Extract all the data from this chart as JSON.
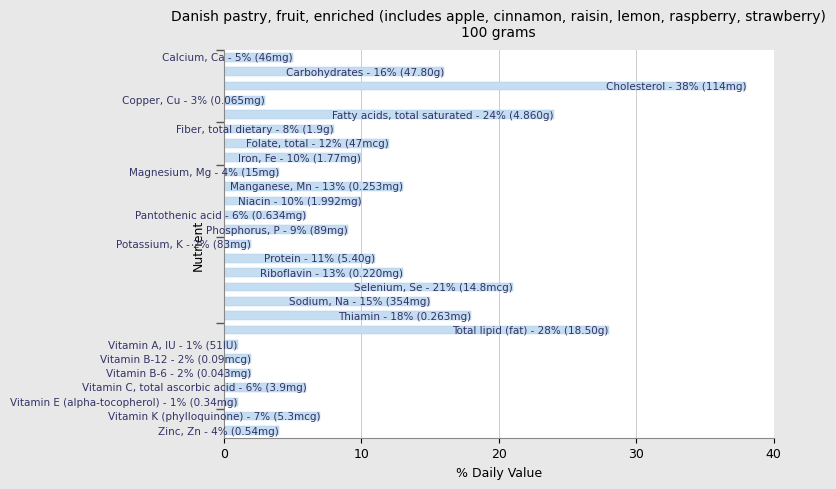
{
  "title": "Danish pastry, fruit, enriched (includes apple, cinnamon, raisin, lemon, raspberry, strawberry)\n100 grams",
  "xlabel": "% Daily Value",
  "ylabel": "Nutrient",
  "xlim": [
    0,
    40
  ],
  "bar_color": "#c5ddf0",
  "bar_edge_color": "#a8c8e8",
  "background_color": "#e8e8e8",
  "plot_background": "#ffffff",
  "text_color": "#333366",
  "nutrients": [
    {
      "label": "Calcium, Ca - 5% (46mg)",
      "value": 5
    },
    {
      "label": "Carbohydrates - 16% (47.80g)",
      "value": 16
    },
    {
      "label": "Cholesterol - 38% (114mg)",
      "value": 38
    },
    {
      "label": "Copper, Cu - 3% (0.065mg)",
      "value": 3
    },
    {
      "label": "Fatty acids, total saturated - 24% (4.860g)",
      "value": 24
    },
    {
      "label": "Fiber, total dietary - 8% (1.9g)",
      "value": 8
    },
    {
      "label": "Folate, total - 12% (47mcg)",
      "value": 12
    },
    {
      "label": "Iron, Fe - 10% (1.77mg)",
      "value": 10
    },
    {
      "label": "Magnesium, Mg - 4% (15mg)",
      "value": 4
    },
    {
      "label": "Manganese, Mn - 13% (0.253mg)",
      "value": 13
    },
    {
      "label": "Niacin - 10% (1.992mg)",
      "value": 10
    },
    {
      "label": "Pantothenic acid - 6% (0.634mg)",
      "value": 6
    },
    {
      "label": "Phosphorus, P - 9% (89mg)",
      "value": 9
    },
    {
      "label": "Potassium, K - 2% (83mg)",
      "value": 2
    },
    {
      "label": "Protein - 11% (5.40g)",
      "value": 11
    },
    {
      "label": "Riboflavin - 13% (0.220mg)",
      "value": 13
    },
    {
      "label": "Selenium, Se - 21% (14.8mcg)",
      "value": 21
    },
    {
      "label": "Sodium, Na - 15% (354mg)",
      "value": 15
    },
    {
      "label": "Thiamin - 18% (0.263mg)",
      "value": 18
    },
    {
      "label": "Total lipid (fat) - 28% (18.50g)",
      "value": 28
    },
    {
      "label": "Vitamin A, IU - 1% (51IU)",
      "value": 1
    },
    {
      "label": "Vitamin B-12 - 2% (0.09mcg)",
      "value": 2
    },
    {
      "label": "Vitamin B-6 - 2% (0.043mg)",
      "value": 2
    },
    {
      "label": "Vitamin C, total ascorbic acid - 6% (3.9mg)",
      "value": 6
    },
    {
      "label": "Vitamin E (alpha-tocopherol) - 1% (0.34mg)",
      "value": 1
    },
    {
      "label": "Vitamin K (phylloquinone) - 7% (5.3mcg)",
      "value": 7
    },
    {
      "label": "Zinc, Zn - 4% (0.54mg)",
      "value": 4
    }
  ],
  "title_fontsize": 10,
  "label_fontsize": 7.5,
  "tick_fontsize": 9,
  "bar_height": 0.6
}
